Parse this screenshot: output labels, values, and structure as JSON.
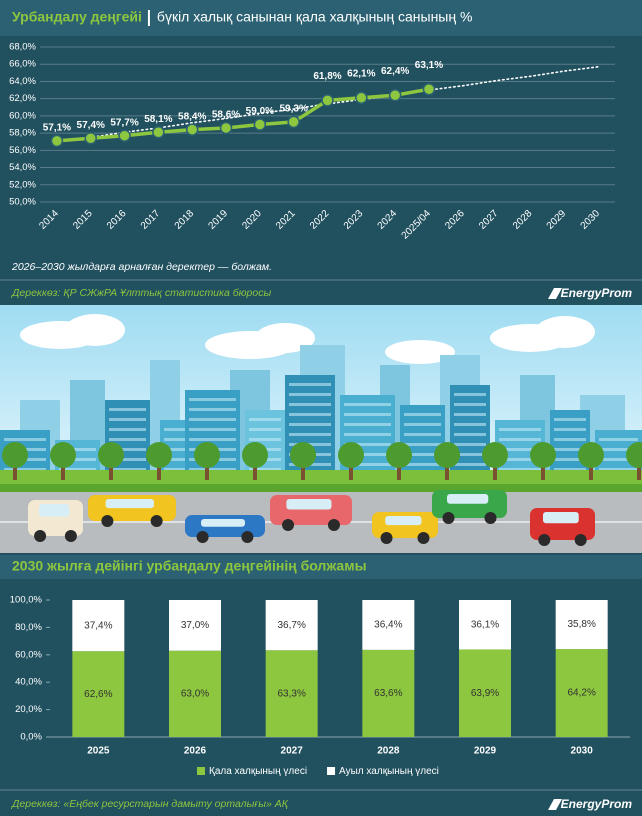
{
  "brand": "EnergyProm",
  "chart_data": [
    {
      "type": "line",
      "title": "Урбандалу деңгейі",
      "subtitle": "бүкіл халық санынан қала халқының санының %",
      "categories": [
        "2014",
        "2015",
        "2016",
        "2017",
        "2018",
        "2019",
        "2020",
        "2021",
        "2022",
        "2023",
        "2024",
        "2025/04",
        "2026",
        "2027",
        "2028",
        "2029",
        "2030"
      ],
      "series": [
        {
          "color": "#8dc63f",
          "values": [
            57.1,
            57.4,
            57.7,
            58.1,
            58.4,
            58.6,
            59.0,
            59.3,
            61.8,
            62.1,
            62.4,
            63.1,
            null,
            null,
            null,
            null,
            null
          ],
          "value_labels": [
            "57,1%",
            "57,4%",
            "57,7%",
            "58,1%",
            "58,4%",
            "58,6%",
            "59,0%",
            "59,3%",
            "61,8%",
            "62,1%",
            "62,4%",
            "63,1%",
            null,
            null,
            null,
            null,
            null
          ]
        },
        {
          "color": "#ffffff",
          "style": "dotted",
          "values": [
            57.0,
            57.5,
            58.1,
            58.6,
            59.2,
            59.7,
            60.3,
            60.8,
            61.4,
            61.9,
            62.4,
            63.0,
            63.5,
            64.1,
            64.6,
            65.2,
            65.7
          ]
        }
      ],
      "ylim": [
        50,
        68
      ],
      "yticks": [
        {
          "value": 50,
          "label": "50,0%"
        },
        {
          "value": 52,
          "label": "52,0%"
        },
        {
          "value": 54,
          "label": "54,0%"
        },
        {
          "value": 56,
          "label": "56,0%"
        },
        {
          "value": 58,
          "label": "58,0%"
        },
        {
          "value": 60,
          "label": "60,0%"
        },
        {
          "value": 62,
          "label": "62,0%"
        },
        {
          "value": 64,
          "label": "64,0%"
        },
        {
          "value": 66,
          "label": "66,0%"
        },
        {
          "value": 68,
          "label": "68,0%"
        }
      ],
      "grid": true,
      "note": "2026–2030 жылдарға арналған деректер — болжам.",
      "source": "Дереккөз: ҚР СЖжРА Ұлттық статистика бюросы"
    },
    {
      "type": "stacked_bar",
      "title": "2030 жылға дейінгі урбандалу деңгейінің болжамы",
      "categories": [
        "2025",
        "2026",
        "2027",
        "2028",
        "2029",
        "2030"
      ],
      "series": [
        {
          "name": "Қала халқының үлесі",
          "color": "#8dc63f",
          "values": [
            62.6,
            63.0,
            63.3,
            63.6,
            63.9,
            64.2
          ],
          "value_labels": [
            "62,6%",
            "63,0%",
            "63,3%",
            "63,6%",
            "63,9%",
            "64,2%"
          ]
        },
        {
          "name": "Ауыл халқының үлесі",
          "color": "#ffffff",
          "values": [
            37.4,
            37.0,
            36.7,
            36.4,
            36.1,
            35.8
          ],
          "value_labels": [
            "37,4%",
            "37,0%",
            "36,7%",
            "36,4%",
            "36,1%",
            "35,8%"
          ]
        }
      ],
      "ylim": [
        0,
        100
      ],
      "yticks": [
        {
          "value": 0,
          "label": "0,0%"
        },
        {
          "value": 20,
          "label": "20,0%"
        },
        {
          "value": 40,
          "label": "40,0%"
        },
        {
          "value": 60,
          "label": "60,0%"
        },
        {
          "value": 80,
          "label": "80,0%"
        },
        {
          "value": 100,
          "label": "100,0%"
        }
      ],
      "legend": "bottom",
      "source": "Дереккөз: «Еңбек ресурстарын дамыту орталығы» АҚ"
    }
  ]
}
